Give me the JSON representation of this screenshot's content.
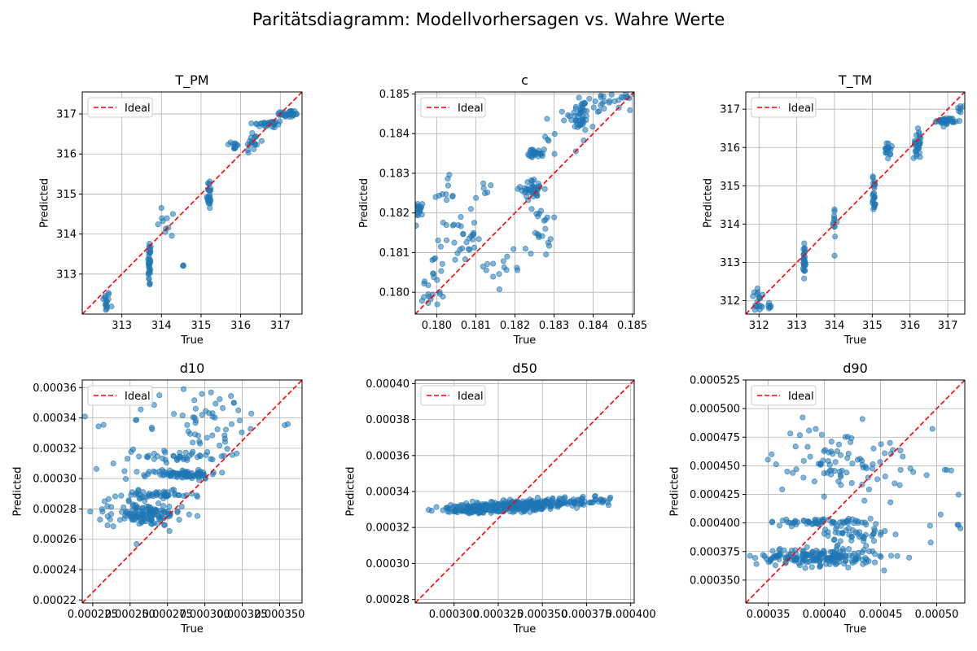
{
  "figure": {
    "title": "Paritätsdiagramm: Modellvorhersagen vs. Wahre Werte"
  },
  "colors": {
    "points": "#1f77b4",
    "ideal_line": "#ff0000",
    "grid": "#b0b0b0"
  },
  "chart_data": [
    {
      "type": "scatter",
      "title": "T_PM",
      "xlabel": "True",
      "ylabel": "Predicted",
      "xlim": [
        312.0,
        317.55
      ],
      "ylim": [
        312.0,
        317.55
      ],
      "xticks": [
        313,
        314,
        315,
        316,
        317
      ],
      "xtick_labels": [
        "313",
        "314",
        "315",
        "316",
        "317"
      ],
      "yticks": [
        313,
        314,
        315,
        316,
        317
      ],
      "ytick_labels": [
        "313",
        "314",
        "315",
        "316",
        "317"
      ],
      "legend": {
        "label": "Ideal",
        "placement": "top-left"
      },
      "grid": true,
      "clusters": [
        {
          "x": 312.6,
          "y": 312.3,
          "sx": 0.05,
          "sy": 0.15,
          "n": 16
        },
        {
          "x": 313.7,
          "y": 313.25,
          "sx": 0.02,
          "sy": 0.3,
          "n": 34
        },
        {
          "x": 314.2,
          "y": 314.25,
          "sx": 0.15,
          "sy": 0.3,
          "n": 10
        },
        {
          "x": 314.55,
          "y": 313.22,
          "sx": 0.01,
          "sy": 0.01,
          "n": 3
        },
        {
          "x": 315.2,
          "y": 315.0,
          "sx": 0.03,
          "sy": 0.2,
          "n": 24
        },
        {
          "x": 315.85,
          "y": 316.2,
          "sx": 0.04,
          "sy": 0.08,
          "n": 12
        },
        {
          "x": 316.3,
          "y": 316.3,
          "sx": 0.1,
          "sy": 0.15,
          "n": 18
        },
        {
          "x": 316.7,
          "y": 316.75,
          "sx": 0.2,
          "sy": 0.05,
          "n": 30
        },
        {
          "x": 317.2,
          "y": 317.0,
          "sx": 0.15,
          "sy": 0.05,
          "n": 30
        }
      ]
    },
    {
      "type": "scatter",
      "title": "c",
      "xlabel": "True",
      "ylabel": "Predicted",
      "xlim": [
        0.17945,
        0.18505
      ],
      "ylim": [
        0.17945,
        0.18505
      ],
      "xticks": [
        0.18,
        0.181,
        0.182,
        0.183,
        0.184,
        0.185
      ],
      "xtick_labels": [
        "0.180",
        "0.181",
        "0.182",
        "0.183",
        "0.184",
        "0.185"
      ],
      "yticks": [
        0.18,
        0.181,
        0.182,
        0.183,
        0.184,
        0.185
      ],
      "ytick_labels": [
        "0.180",
        "0.181",
        "0.182",
        "0.183",
        "0.184",
        "0.185"
      ],
      "legend": {
        "label": "Ideal",
        "placement": "top-left"
      },
      "grid": true,
      "clusters": [
        {
          "x": 0.17955,
          "y": 0.1821,
          "sx": 5e-05,
          "sy": 0.0001,
          "n": 20
        },
        {
          "x": 0.1799,
          "y": 0.1801,
          "sx": 0.00015,
          "sy": 0.0005,
          "n": 25
        },
        {
          "x": 0.1802,
          "y": 0.1825,
          "sx": 0.0002,
          "sy": 0.0002,
          "n": 10
        },
        {
          "x": 0.1806,
          "y": 0.1814,
          "sx": 0.0002,
          "sy": 0.0003,
          "n": 30
        },
        {
          "x": 0.18125,
          "y": 0.1825,
          "sx": 0.0002,
          "sy": 0.0004,
          "n": 6
        },
        {
          "x": 0.1818,
          "y": 0.1807,
          "sx": 0.0003,
          "sy": 0.0004,
          "n": 15
        },
        {
          "x": 0.18245,
          "y": 0.1826,
          "sx": 0.00015,
          "sy": 0.00012,
          "n": 40
        },
        {
          "x": 0.18255,
          "y": 0.1835,
          "sx": 0.0001,
          "sy": 5e-05,
          "n": 25
        },
        {
          "x": 0.18265,
          "y": 0.1816,
          "sx": 0.00015,
          "sy": 0.00035,
          "n": 20
        },
        {
          "x": 0.183,
          "y": 0.1839,
          "sx": 0.0003,
          "sy": 0.0004,
          "n": 12
        },
        {
          "x": 0.18365,
          "y": 0.1844,
          "sx": 0.00012,
          "sy": 0.0002,
          "n": 40
        },
        {
          "x": 0.1844,
          "y": 0.1848,
          "sx": 0.0003,
          "sy": 0.0001,
          "n": 30
        }
      ]
    },
    {
      "type": "scatter",
      "title": "T_TM",
      "xlabel": "True",
      "ylabel": "Predicted",
      "xlim": [
        311.65,
        317.45
      ],
      "ylim": [
        311.65,
        317.45
      ],
      "xticks": [
        312,
        313,
        314,
        315,
        316,
        317
      ],
      "xtick_labels": [
        "312",
        "313",
        "314",
        "315",
        "316",
        "317"
      ],
      "yticks": [
        312,
        313,
        314,
        315,
        316,
        317
      ],
      "ytick_labels": [
        "312",
        "313",
        "314",
        "315",
        "316",
        "317"
      ],
      "legend": {
        "label": "Ideal",
        "placement": "top-left"
      },
      "grid": true,
      "clusters": [
        {
          "x": 312.0,
          "y": 312.0,
          "sx": 0.1,
          "sy": 0.15,
          "n": 18
        },
        {
          "x": 312.3,
          "y": 311.85,
          "sx": 0.05,
          "sy": 0.05,
          "n": 6
        },
        {
          "x": 313.2,
          "y": 313.0,
          "sx": 0.02,
          "sy": 0.25,
          "n": 30
        },
        {
          "x": 314.0,
          "y": 314.0,
          "sx": 0.03,
          "sy": 0.3,
          "n": 12
        },
        {
          "x": 315.05,
          "y": 314.8,
          "sx": 0.02,
          "sy": 0.25,
          "n": 26
        },
        {
          "x": 315.4,
          "y": 315.9,
          "sx": 0.04,
          "sy": 0.1,
          "n": 16
        },
        {
          "x": 316.2,
          "y": 316.1,
          "sx": 0.05,
          "sy": 0.2,
          "n": 30
        },
        {
          "x": 316.95,
          "y": 316.7,
          "sx": 0.12,
          "sy": 0.04,
          "n": 40
        },
        {
          "x": 317.35,
          "y": 317.0,
          "sx": 0.05,
          "sy": 0.05,
          "n": 6
        }
      ]
    },
    {
      "type": "scatter",
      "title": "d10",
      "xlabel": "True",
      "ylabel": "Predicted",
      "xlim": [
        0.000218,
        0.000365
      ],
      "ylim": [
        0.000218,
        0.000365
      ],
      "xticks": [
        0.000225,
        0.00025,
        0.000275,
        0.0003,
        0.000325,
        0.00035
      ],
      "xtick_labels": [
        "0.000225",
        "0.000250",
        "0.000275",
        "0.000300",
        "0.000325",
        "0.000350"
      ],
      "yticks": [
        0.00022,
        0.00024,
        0.00026,
        0.00028,
        0.0003,
        0.00032,
        0.00034,
        0.00036
      ],
      "ytick_labels": [
        "0.00022",
        "0.00024",
        "0.00026",
        "0.00028",
        "0.00030",
        "0.00032",
        "0.00034",
        "0.00036"
      ],
      "legend": {
        "label": "Ideal",
        "placement": "top-left"
      },
      "grid": true,
      "clusters": [
        {
          "x": 0.00026,
          "y": 0.000276,
          "sx": 1.2e-05,
          "sy": 3.5e-06,
          "n": 120
        },
        {
          "x": 0.000268,
          "y": 0.000289,
          "sx": 1.2e-05,
          "sy": 1.5e-06,
          "n": 50
        },
        {
          "x": 0.000285,
          "y": 0.000303,
          "sx": 1.2e-05,
          "sy": 1.5e-06,
          "n": 80
        },
        {
          "x": 0.000285,
          "y": 0.000315,
          "sx": 1.5e-05,
          "sy": 2e-06,
          "n": 40
        },
        {
          "x": 0.000298,
          "y": 0.000338,
          "sx": 2.5e-05,
          "sy": 1.2e-05,
          "n": 60
        },
        {
          "x": 0.00024,
          "y": 0.000285,
          "sx": 1e-05,
          "sy": 1.5e-05,
          "n": 15
        }
      ]
    },
    {
      "type": "scatter",
      "title": "d50",
      "xlabel": "True",
      "ylabel": "Predicted",
      "xlim": [
        0.000278,
        0.000402
      ],
      "ylim": [
        0.000278,
        0.000402
      ],
      "xticks": [
        0.0003,
        0.000325,
        0.00035,
        0.000375,
        0.0004
      ],
      "xtick_labels": [
        "0.000300",
        "0.000325",
        "0.000350",
        "0.000375",
        "0.000400"
      ],
      "yticks": [
        0.00028,
        0.0003,
        0.00032,
        0.00034,
        0.00036,
        0.00038,
        0.0004
      ],
      "ytick_labels": [
        "0.00028",
        "0.00030",
        "0.00032",
        "0.00034",
        "0.00036",
        "0.00038",
        "0.00040"
      ],
      "legend": {
        "label": "Ideal",
        "placement": "top-left"
      },
      "grid": true,
      "clusters": [
        {
          "x": 0.00031,
          "y": 0.00033,
          "sx": 1e-05,
          "sy": 1.2e-06,
          "n": 90
        },
        {
          "x": 0.000335,
          "y": 0.000332,
          "sx": 1.2e-05,
          "sy": 1.5e-06,
          "n": 200
        },
        {
          "x": 0.00036,
          "y": 0.000334,
          "sx": 1.2e-05,
          "sy": 1.2e-06,
          "n": 80
        },
        {
          "x": 0.000378,
          "y": 0.000335,
          "sx": 1e-05,
          "sy": 1e-06,
          "n": 15
        }
      ]
    },
    {
      "type": "scatter",
      "title": "d90",
      "xlabel": "True",
      "ylabel": "Predicted",
      "xlim": [
        0.00033,
        0.000525
      ],
      "ylim": [
        0.00033,
        0.000525
      ],
      "xticks": [
        0.00035,
        0.0004,
        0.00045,
        0.0005
      ],
      "xtick_labels": [
        "0.00035",
        "0.00040",
        "0.00045",
        "0.00050"
      ],
      "yticks": [
        0.00035,
        0.000375,
        0.0004,
        0.000425,
        0.00045,
        0.000475,
        0.0005,
        0.000525
      ],
      "ytick_labels": [
        "0.000350",
        "0.000375",
        "0.000400",
        "0.000425",
        "0.000450",
        "0.000475",
        "0.000500",
        "0.000525"
      ],
      "legend": {
        "label": "Ideal",
        "placement": "top-left"
      },
      "grid": true,
      "clusters": [
        {
          "x": 0.000395,
          "y": 0.00037,
          "sx": 2.8e-05,
          "sy": 4e-06,
          "n": 200
        },
        {
          "x": 0.0004,
          "y": 0.000401,
          "sx": 2.5e-05,
          "sy": 1.5e-06,
          "n": 60
        },
        {
          "x": 0.000425,
          "y": 0.00039,
          "sx": 1.5e-05,
          "sy": 3e-06,
          "n": 40
        },
        {
          "x": 0.000415,
          "y": 0.000455,
          "sx": 3e-05,
          "sy": 1.5e-05,
          "n": 90
        },
        {
          "x": 0.0005,
          "y": 0.00043,
          "sx": 1.5e-05,
          "sy": 3e-05,
          "n": 12
        }
      ]
    }
  ]
}
